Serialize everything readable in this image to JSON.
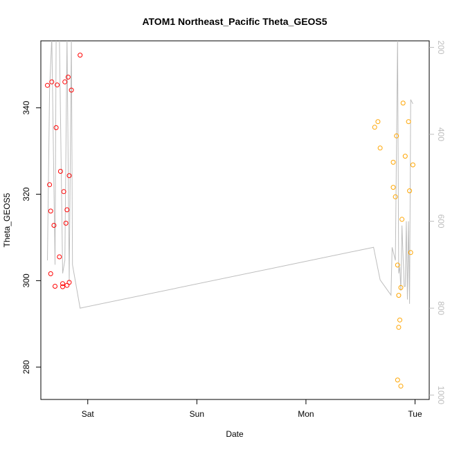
{
  "chart_data": {
    "type": "scatter",
    "title": "ATOM1 Northeast_Pacific Theta_GEOS5",
    "xlabel": "Date",
    "ylabel": "Theta_GEOS5",
    "x_ticks": [
      "Sat",
      "Sun",
      "Mon",
      "Tue"
    ],
    "x_tick_values": [
      1,
      2,
      3,
      4
    ],
    "xlim": [
      0.57,
      4.13
    ],
    "ylim": [
      272.5,
      355.5
    ],
    "y_ticks": [
      280,
      300,
      320,
      340
    ],
    "y2_ticks": [
      200,
      400,
      600,
      800,
      1000
    ],
    "y2lim": [
      1010,
      185
    ],
    "grid": false,
    "legend": "none",
    "colors": {
      "series_red": "#ff0000",
      "series_orange": "#ffa500",
      "pressure_line": "#bdbdbd",
      "right_axis": "#bdbdbd"
    },
    "series": [
      {
        "color": "#ff0000",
        "points": [
          {
            "x": 0.63,
            "y": 345.2
          },
          {
            "x": 0.65,
            "y": 322.2
          },
          {
            "x": 0.66,
            "y": 316.1
          },
          {
            "x": 0.66,
            "y": 301.6
          },
          {
            "x": 0.67,
            "y": 346.0
          },
          {
            "x": 0.69,
            "y": 312.8
          },
          {
            "x": 0.7,
            "y": 298.7
          },
          {
            "x": 0.71,
            "y": 335.4
          },
          {
            "x": 0.72,
            "y": 345.3
          },
          {
            "x": 0.74,
            "y": 305.5
          },
          {
            "x": 0.75,
            "y": 325.3
          },
          {
            "x": 0.77,
            "y": 299.3
          },
          {
            "x": 0.77,
            "y": 298.6
          },
          {
            "x": 0.78,
            "y": 320.6
          },
          {
            "x": 0.79,
            "y": 346.0
          },
          {
            "x": 0.8,
            "y": 313.3
          },
          {
            "x": 0.81,
            "y": 298.9
          },
          {
            "x": 0.81,
            "y": 316.4
          },
          {
            "x": 0.82,
            "y": 347.1
          },
          {
            "x": 0.83,
            "y": 324.3
          },
          {
            "x": 0.83,
            "y": 299.6
          },
          {
            "x": 0.85,
            "y": 344.1
          },
          {
            "x": 0.93,
            "y": 352.2
          }
        ]
      },
      {
        "color": "#ffa500",
        "points": [
          {
            "x": 3.63,
            "y": 335.5
          },
          {
            "x": 3.66,
            "y": 336.8
          },
          {
            "x": 3.68,
            "y": 330.7
          },
          {
            "x": 3.8,
            "y": 327.4
          },
          {
            "x": 3.8,
            "y": 321.6
          },
          {
            "x": 3.82,
            "y": 319.4
          },
          {
            "x": 3.83,
            "y": 333.5
          },
          {
            "x": 3.84,
            "y": 303.6
          },
          {
            "x": 3.84,
            "y": 277.0
          },
          {
            "x": 3.85,
            "y": 289.2
          },
          {
            "x": 3.85,
            "y": 296.6
          },
          {
            "x": 3.86,
            "y": 290.9
          },
          {
            "x": 3.87,
            "y": 275.6
          },
          {
            "x": 3.87,
            "y": 298.4
          },
          {
            "x": 3.88,
            "y": 314.2
          },
          {
            "x": 3.89,
            "y": 341.1
          },
          {
            "x": 3.91,
            "y": 328.8
          },
          {
            "x": 3.94,
            "y": 336.8
          },
          {
            "x": 3.95,
            "y": 320.8
          },
          {
            "x": 3.96,
            "y": 306.5
          },
          {
            "x": 3.98,
            "y": 326.8
          }
        ]
      }
    ],
    "line_series": {
      "color": "#bdbdbd",
      "axis": "right",
      "points": [
        {
          "x": 0.63,
          "y2": 690
        },
        {
          "x": 0.65,
          "y2": 300
        },
        {
          "x": 0.67,
          "y2": 175
        },
        {
          "x": 0.7,
          "y2": 700
        },
        {
          "x": 0.71,
          "y2": 175
        },
        {
          "x": 0.74,
          "y2": 175
        },
        {
          "x": 0.77,
          "y2": 720
        },
        {
          "x": 0.79,
          "y2": 690
        },
        {
          "x": 0.81,
          "y2": 175
        },
        {
          "x": 0.83,
          "y2": 740
        },
        {
          "x": 0.85,
          "y2": 175
        },
        {
          "x": 0.86,
          "y2": 700
        },
        {
          "x": 0.93,
          "y2": 800
        },
        {
          "x": 3.62,
          "y2": 660
        },
        {
          "x": 3.68,
          "y2": 735
        },
        {
          "x": 3.78,
          "y2": 770
        },
        {
          "x": 3.79,
          "y2": 660
        },
        {
          "x": 3.82,
          "y2": 690
        },
        {
          "x": 3.84,
          "y2": 175
        },
        {
          "x": 3.85,
          "y2": 720
        },
        {
          "x": 3.86,
          "y2": 705
        },
        {
          "x": 3.87,
          "y2": 760
        },
        {
          "x": 3.88,
          "y2": 610
        },
        {
          "x": 3.9,
          "y2": 750
        },
        {
          "x": 3.91,
          "y2": 750
        },
        {
          "x": 3.92,
          "y2": 600
        },
        {
          "x": 3.93,
          "y2": 780
        },
        {
          "x": 3.94,
          "y2": 600
        },
        {
          "x": 3.95,
          "y2": 790
        },
        {
          "x": 3.96,
          "y2": 320
        },
        {
          "x": 3.98,
          "y2": 330
        }
      ]
    }
  }
}
